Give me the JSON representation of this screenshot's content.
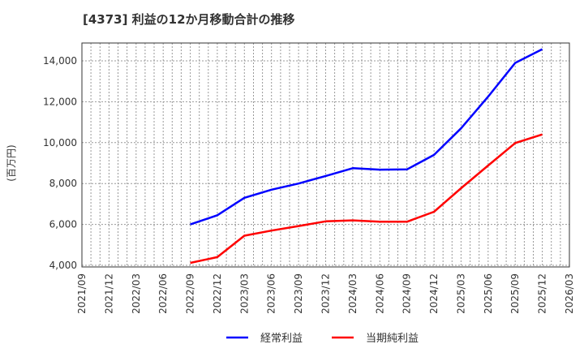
{
  "title": "[4373]  利益の12か月移動合計の推移",
  "chart_data": {
    "type": "line",
    "title": "[4373]  利益の12か月移動合計の推移",
    "xlabel": "",
    "ylabel": "(百万円)",
    "ylim": [
      4000,
      14800
    ],
    "yticks": [
      4000,
      6000,
      8000,
      10000,
      12000,
      14000
    ],
    "ytick_labels": [
      "4,000",
      "6,000",
      "8,000",
      "10,000",
      "12,000",
      "14,000"
    ],
    "grid": true,
    "legend_position": "bottom",
    "categories": [
      "2021/09",
      "2021/12",
      "2022/03",
      "2022/06",
      "2022/09",
      "2022/12",
      "2023/03",
      "2023/06",
      "2023/09",
      "2023/12",
      "2024/03",
      "2024/06",
      "2024/09",
      "2024/12",
      "2025/03",
      "2025/06",
      "2025/09",
      "2025/12",
      "2026/03"
    ],
    "series": [
      {
        "name": "経常利益",
        "color": "#0000ff",
        "values": [
          null,
          null,
          null,
          null,
          6000,
          6450,
          7300,
          7700,
          8000,
          8370,
          8750,
          8680,
          8690,
          9400,
          10700,
          12250,
          13900,
          14570,
          null
        ]
      },
      {
        "name": "当期純利益",
        "color": "#ff0000",
        "values": [
          null,
          null,
          null,
          null,
          4120,
          4400,
          5450,
          5700,
          5920,
          6150,
          6200,
          6130,
          6130,
          6620,
          7770,
          8880,
          9980,
          10400,
          null
        ]
      }
    ]
  },
  "legend": [
    {
      "label": "経常利益",
      "color": "#0000ff"
    },
    {
      "label": "当期純利益",
      "color": "#ff0000"
    }
  ]
}
